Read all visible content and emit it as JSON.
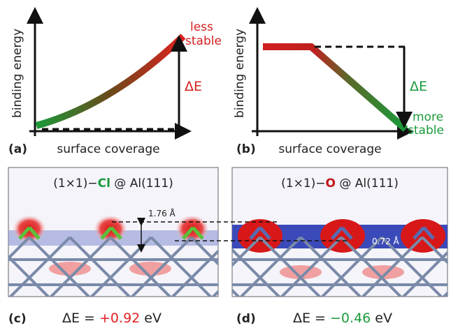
{
  "panels": [
    {
      "label": "(a)",
      "y_axis": "binding energy",
      "x_axis": "surface coverage",
      "delta": "ΔE",
      "note": [
        "less",
        "stable"
      ]
    },
    {
      "label": "(b)",
      "y_axis": "binding energy",
      "x_axis": "surface coverage",
      "delta": "ΔE",
      "note": [
        "more",
        "stable"
      ]
    },
    {
      "label": "(c)",
      "title": [
        "(1×1)−",
        "Cl",
        " @ Al(111)"
      ],
      "distance": "1.76 Å",
      "energy": [
        "ΔE = ",
        "+0.92",
        " eV"
      ]
    },
    {
      "label": "(d)",
      "title": [
        "(1×1)−",
        "O",
        " @ Al(111)"
      ],
      "distance": "0.72 Å",
      "energy": [
        "ΔE = ",
        "−0.46",
        " eV"
      ]
    }
  ]
}
